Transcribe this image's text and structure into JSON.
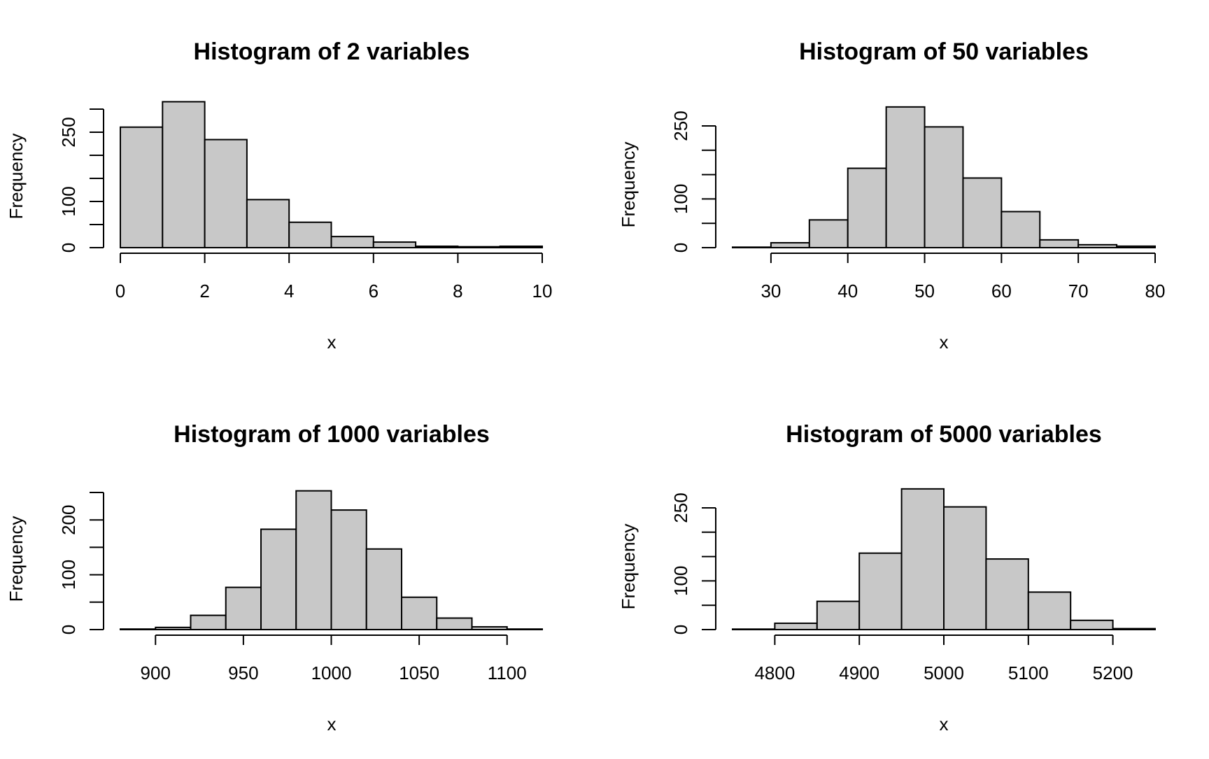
{
  "chart_data": [
    {
      "type": "bar",
      "title": "Histogram of 2 variables",
      "xlabel": "x",
      "ylabel": "Frequency",
      "bins": [
        [
          0,
          1
        ],
        [
          1,
          2
        ],
        [
          2,
          3
        ],
        [
          3,
          4
        ],
        [
          4,
          5
        ],
        [
          5,
          6
        ],
        [
          6,
          7
        ],
        [
          7,
          8
        ],
        [
          8,
          9
        ],
        [
          9,
          10
        ]
      ],
      "values": [
        261,
        316,
        234,
        104,
        55,
        24,
        12,
        3,
        2,
        3
      ],
      "xticks": [
        0,
        2,
        4,
        6,
        8,
        10
      ],
      "xtick_labels": [
        "0",
        "2",
        "4",
        "6",
        "8",
        "10"
      ],
      "yticks": [
        0,
        50,
        100,
        150,
        200,
        250,
        300
      ],
      "ytick_labels": [
        "0",
        "",
        "100",
        "",
        "",
        "250",
        ""
      ],
      "xlim": [
        0,
        10
      ],
      "ylim": [
        0,
        300
      ]
    },
    {
      "type": "bar",
      "title": "Histogram of 50 variables",
      "xlabel": "x",
      "ylabel": "Frequency",
      "bins": [
        [
          25,
          30
        ],
        [
          30,
          35
        ],
        [
          35,
          40
        ],
        [
          40,
          45
        ],
        [
          45,
          50
        ],
        [
          50,
          55
        ],
        [
          55,
          60
        ],
        [
          60,
          65
        ],
        [
          65,
          70
        ],
        [
          70,
          75
        ],
        [
          75,
          80
        ]
      ],
      "values": [
        1,
        10,
        57,
        163,
        289,
        248,
        143,
        74,
        16,
        6,
        3
      ],
      "xticks": [
        30,
        40,
        50,
        60,
        70,
        80
      ],
      "xtick_labels": [
        "30",
        "40",
        "50",
        "60",
        "70",
        "80"
      ],
      "yticks": [
        0,
        50,
        100,
        150,
        200,
        250
      ],
      "ytick_labels": [
        "0",
        "",
        "100",
        "",
        "",
        "250"
      ],
      "xlim": [
        25,
        80
      ],
      "ylim": [
        0,
        250
      ]
    },
    {
      "type": "bar",
      "title": "Histogram of 1000 variables",
      "xlabel": "x",
      "ylabel": "Frequency",
      "bins": [
        [
          880,
          900
        ],
        [
          900,
          920
        ],
        [
          920,
          940
        ],
        [
          940,
          960
        ],
        [
          960,
          980
        ],
        [
          980,
          1000
        ],
        [
          1000,
          1020
        ],
        [
          1020,
          1040
        ],
        [
          1040,
          1060
        ],
        [
          1060,
          1080
        ],
        [
          1080,
          1100
        ],
        [
          1100,
          1120
        ]
      ],
      "values": [
        1,
        4,
        26,
        77,
        183,
        253,
        218,
        147,
        59,
        21,
        5,
        1
      ],
      "xticks": [
        900,
        950,
        1000,
        1050,
        1100
      ],
      "xtick_labels": [
        "900",
        "950",
        "1000",
        "1050",
        "1100"
      ],
      "yticks": [
        0,
        50,
        100,
        150,
        200,
        250
      ],
      "ytick_labels": [
        "0",
        "",
        "100",
        "",
        "200",
        ""
      ],
      "xlim": [
        880,
        1120
      ],
      "ylim": [
        0,
        250
      ]
    },
    {
      "type": "bar",
      "title": "Histogram of 5000 variables",
      "xlabel": "x",
      "ylabel": "Frequency",
      "bins": [
        [
          4750,
          4800
        ],
        [
          4800,
          4850
        ],
        [
          4850,
          4900
        ],
        [
          4900,
          4950
        ],
        [
          4950,
          5000
        ],
        [
          5000,
          5050
        ],
        [
          5050,
          5100
        ],
        [
          5100,
          5150
        ],
        [
          5150,
          5200
        ],
        [
          5200,
          5250
        ]
      ],
      "values": [
        1,
        13,
        58,
        157,
        289,
        252,
        145,
        77,
        19,
        2
      ],
      "xticks": [
        4800,
        4900,
        5000,
        5100,
        5200
      ],
      "xtick_labels": [
        "4800",
        "4900",
        "5000",
        "5100",
        "5200"
      ],
      "yticks": [
        0,
        50,
        100,
        150,
        200,
        250
      ],
      "ytick_labels": [
        "0",
        "",
        "100",
        "",
        "",
        "250"
      ],
      "xlim": [
        4750,
        5250
      ],
      "ylim": [
        0,
        250
      ]
    }
  ]
}
